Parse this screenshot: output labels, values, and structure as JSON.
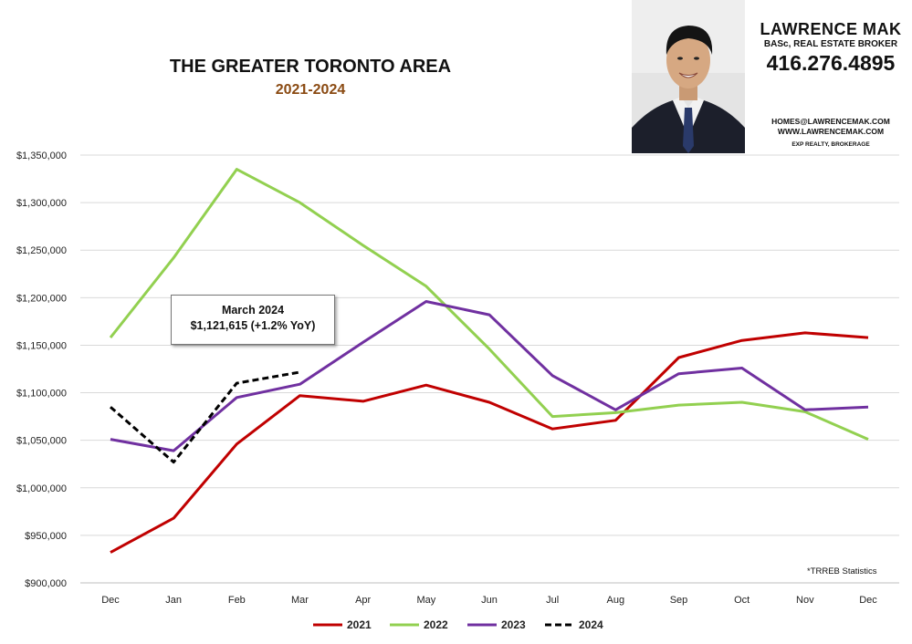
{
  "title": "THE GREATER TORONTO AREA",
  "subtitle": "2021-2024",
  "agent": {
    "name": "LAWRENCE MAK",
    "credentials": "BASc, REAL ESTATE BROKER",
    "phone": "416.276.4895",
    "email": "HOMES@LAWRENCEMAK.COM",
    "website": "WWW.LAWRENCEMAK.COM",
    "brokerage": "EXP REALTY, BROKERAGE"
  },
  "callout": {
    "title": "March 2024",
    "value": "$1,121,615  (+1.2%  YoY)"
  },
  "source_note": "*TRREB Statistics",
  "colors": {
    "2021": "#c00000",
    "2022": "#92d050",
    "2023": "#7030a0",
    "2024": "#000000",
    "grid": "#d9d9d9"
  },
  "chart_data": {
    "type": "line",
    "title": "THE GREATER TORONTO AREA",
    "subtitle": "2021-2024",
    "categories": [
      "Dec",
      "Jan",
      "Feb",
      "Mar",
      "Apr",
      "May",
      "Jun",
      "Jul",
      "Aug",
      "Sep",
      "Oct",
      "Nov",
      "Dec"
    ],
    "yticks": [
      "$900,000",
      "$950,000",
      "$1,000,000",
      "$1,050,000",
      "$1,100,000",
      "$1,150,000",
      "$1,200,000",
      "$1,250,000",
      "$1,300,000",
      "$1,350,000"
    ],
    "ylim": [
      900000,
      1350000
    ],
    "grid": true,
    "legend": "bottom",
    "series": [
      {
        "name": "2021",
        "color": "#c00000",
        "dash": false,
        "values": [
          932000,
          968000,
          1046000,
          1097000,
          1091000,
          1108000,
          1090000,
          1062000,
          1071000,
          1137000,
          1155000,
          1163000,
          1158000
        ]
      },
      {
        "name": "2022",
        "color": "#92d050",
        "dash": false,
        "values": [
          1158000,
          1242000,
          1335000,
          1300000,
          1255000,
          1212000,
          1146000,
          1075000,
          1079000,
          1087000,
          1090000,
          1080000,
          1051000
        ]
      },
      {
        "name": "2023",
        "color": "#7030a0",
        "dash": false,
        "values": [
          1051000,
          1039000,
          1095000,
          1109000,
          1153000,
          1196000,
          1182000,
          1118000,
          1082000,
          1120000,
          1126000,
          1082000,
          1085000
        ]
      },
      {
        "name": "2024",
        "color": "#000000",
        "dash": true,
        "values": [
          1085000,
          1027000,
          1110000,
          1121615,
          null,
          null,
          null,
          null,
          null,
          null,
          null,
          null,
          null
        ]
      }
    ]
  }
}
